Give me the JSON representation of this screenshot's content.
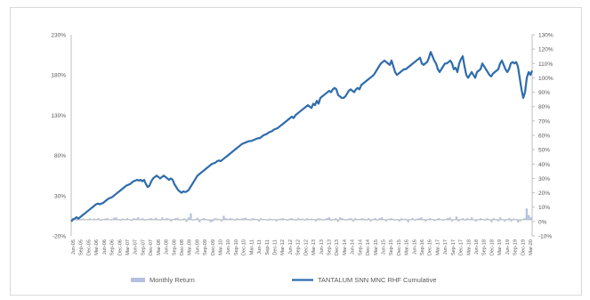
{
  "chart_data": {
    "type": "bar+line",
    "title": "",
    "left_axis": {
      "ticks": [
        "-20%",
        "30%",
        "80%",
        "130%",
        "180%",
        "230%"
      ],
      "range": [
        -20,
        230
      ]
    },
    "right_axis": {
      "ticks": [
        "-10%",
        "0%",
        "10%",
        "20%",
        "30%",
        "40%",
        "50%",
        "60%",
        "70%",
        "80%",
        "90%",
        "100%",
        "110%",
        "120%",
        "130%"
      ],
      "range": [
        -10,
        130
      ]
    },
    "x_ticks": [
      "Jun-05",
      "Sep-05",
      "Dec-05",
      "Mar-06",
      "Jun-06",
      "Sep-06",
      "Dec-06",
      "Mar-07",
      "Jun-07",
      "Sep-07",
      "Dec-07",
      "Mar-08",
      "Jun-08",
      "Sep-08",
      "Dec-08",
      "Mar-09",
      "Jun-09",
      "Sep-09",
      "Dec-09",
      "Mar-10",
      "Jun-10",
      "Sep-10",
      "Dec-10",
      "Mar-11",
      "Jun-11",
      "Sep-11",
      "Dec-11",
      "Mar-12",
      "Jun-12",
      "Sep-12",
      "Dec-12",
      "Mar-13",
      "Jun-13",
      "Sep-13",
      "Dec-13",
      "Mar-14",
      "Jun-14",
      "Sep-14",
      "Dec-14",
      "Mar-15",
      "Jun-15",
      "Sep-15",
      "Dec-15",
      "Mar-16",
      "Jun-16",
      "Sep-16",
      "Dec-16",
      "Mar-17",
      "Jun-17",
      "Sep-17",
      "Dec-17",
      "Mar-18",
      "Jun-18",
      "Sep-18",
      "Dec-18",
      "Mar-19",
      "Jun-19",
      "Sep-19",
      "Dec-19",
      "Mar-20"
    ],
    "series": [
      {
        "name": "Monthly Return",
        "kind": "bar",
        "axis": "left",
        "color": "#b4c0de",
        "values": [
          2,
          1.5,
          -1,
          2,
          1,
          1.5,
          -0.5,
          1,
          2,
          0.5,
          1.5,
          1,
          2,
          -1,
          1,
          1.5,
          2,
          -0.5,
          1,
          2.5,
          3,
          1,
          -1,
          1.5,
          1,
          2,
          1,
          -1.5,
          2,
          1.5,
          3,
          1,
          2,
          -1,
          1,
          1.5,
          2,
          1,
          2.5,
          1,
          -1,
          3,
          1,
          2,
          1.5,
          -2,
          1,
          2,
          2.5,
          -1,
          1,
          2,
          -2.5,
          3,
          8,
          -1,
          1,
          2.5,
          -3,
          1,
          2,
          1,
          -1,
          -3,
          -2,
          2,
          1.5,
          1,
          -2,
          5,
          2,
          1,
          2,
          1.5,
          -1,
          2,
          1,
          1.5,
          2,
          2.5,
          1,
          -1,
          2,
          1.5,
          1,
          -2,
          2,
          1,
          1,
          -1,
          1.5,
          1,
          1,
          -2,
          1,
          1.5,
          2,
          1,
          -1,
          1.5,
          2,
          1,
          -1,
          2,
          1,
          1.5,
          -1,
          2,
          1,
          1.5,
          1,
          -2,
          2,
          1.5,
          -1,
          1,
          2,
          3,
          -1.5,
          1,
          2,
          -2.5,
          3,
          2,
          1,
          -1,
          1.5,
          2,
          -2,
          2,
          1,
          1,
          2,
          1.5,
          -1,
          2,
          -2,
          1,
          2,
          -1,
          2,
          3,
          1,
          -2,
          1,
          2,
          1.5,
          -1,
          1,
          -2,
          2,
          1,
          1.5,
          -3,
          1,
          2,
          -1,
          1.5,
          2,
          3,
          1,
          -2,
          1,
          2,
          1,
          -1.5,
          1,
          2,
          1,
          -1,
          1,
          2,
          3,
          -2,
          1,
          4,
          -2,
          1,
          2,
          -1,
          2,
          1,
          3,
          -1,
          -2,
          1,
          2,
          1,
          -1,
          2,
          1,
          -3,
          2,
          1,
          -2,
          3,
          1,
          -2,
          1,
          2,
          -2,
          1.5,
          1,
          -3,
          -2,
          1,
          2,
          14,
          6,
          3
        ]
      },
      {
        "name": "TANTALUM SNN MNC RHF Cumulative",
        "kind": "line",
        "axis": "right",
        "color": "#2e6cad",
        "values": [
          0,
          1.5,
          2,
          3,
          2,
          3,
          4,
          5,
          6,
          7,
          8,
          9,
          10,
          11,
          12,
          12.5,
          12,
          12.5,
          13,
          14,
          15,
          16,
          16.5,
          17,
          18,
          19,
          20,
          21,
          22,
          23,
          24,
          25,
          25.5,
          26,
          27,
          28,
          28.5,
          29,
          28.5,
          29,
          28,
          29,
          26,
          24,
          25,
          28,
          30,
          31,
          32,
          31,
          30,
          31,
          32,
          31,
          30,
          29,
          30,
          29,
          26,
          24,
          22,
          21,
          20,
          21,
          20.5,
          21,
          22,
          24,
          26,
          28,
          30,
          32,
          33,
          34,
          35,
          36,
          37,
          38,
          39,
          40,
          40.5,
          41,
          42,
          42.5,
          42,
          43,
          44,
          45,
          46,
          47,
          48,
          49,
          50,
          51,
          52,
          53,
          54,
          54.5,
          55,
          55.5,
          56,
          56,
          56.5,
          57,
          57.5,
          58,
          58,
          59,
          60,
          60.5,
          61,
          62,
          62.5,
          63,
          64,
          64.5,
          65,
          66,
          67,
          68,
          69,
          70,
          71,
          72,
          73,
          72,
          74,
          75,
          76,
          77,
          78,
          79,
          80,
          81,
          80,
          79,
          82,
          81,
          84,
          82,
          86,
          87,
          88,
          89,
          90,
          91,
          90,
          92,
          93,
          92,
          88,
          87,
          86,
          86,
          87,
          89,
          91,
          92,
          91,
          90,
          92,
          93,
          92,
          95,
          96,
          97,
          98,
          99,
          100,
          101,
          102,
          104,
          106,
          108,
          110,
          111,
          112,
          111,
          110,
          109,
          112,
          108,
          104,
          102,
          103,
          104,
          105,
          106,
          106,
          107,
          108,
          109,
          110,
          111,
          112,
          113,
          114,
          110,
          109,
          110,
          111,
          114,
          118,
          115,
          112,
          110,
          106,
          104,
          106,
          108,
          110,
          110,
          111,
          112,
          110,
          106,
          107,
          104,
          110,
          113,
          115,
          108,
          102,
          100,
          102,
          104,
          102,
          100,
          104,
          105,
          106,
          110,
          108,
          106,
          104,
          102,
          101,
          103,
          104,
          105,
          106,
          110,
          112,
          109,
          106,
          104,
          106,
          110,
          111,
          110,
          111,
          108,
          100,
          92,
          86,
          90,
          100,
          104,
          102,
          105
        ]
      }
    ],
    "legend": {
      "position": "bottom",
      "items": [
        "Monthly Return",
        "TANTALUM SNN MNC RHF Cumulative"
      ]
    },
    "grid": false
  }
}
